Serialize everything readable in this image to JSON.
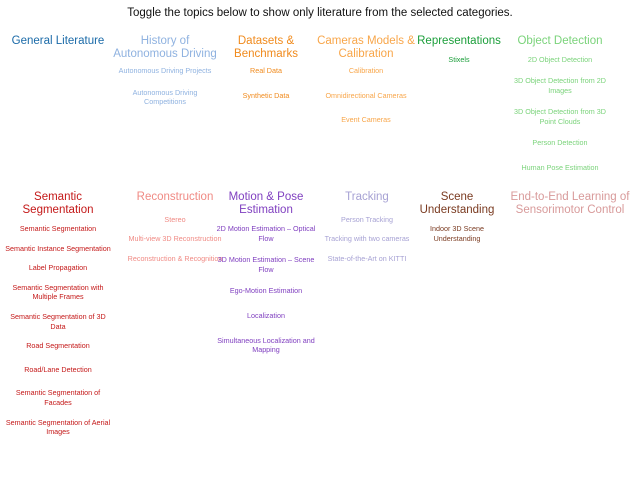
{
  "instruction": "Toggle the topics below to show only literature from the selected categories.",
  "colors": {
    "general_literature": "#1a6aa8",
    "history": "#8fb2e0",
    "datasets": "#f08a1c",
    "cameras": "#f8a64a",
    "representations": "#1b9e3a",
    "object_detection": "#7ad37a",
    "semantic_segmentation": "#c41818",
    "reconstruction": "#f08a84",
    "motion_pose": "#8040c0",
    "tracking": "#a7a2d4",
    "scene_understanding": "#7a3a20",
    "end_to_end": "#d89a9a"
  },
  "categories": [
    {
      "title": "General Literature",
      "items": []
    },
    {
      "title": "History of Autonomous Driving",
      "items": [
        "Autonomous Driving Projects",
        "Autonomous Driving Competitions"
      ]
    },
    {
      "title": "Datasets & Benchmarks",
      "items": [
        "Real Data",
        "Synthetic Data"
      ]
    },
    {
      "title": "Cameras Models & Calibration",
      "items": [
        "Calibration",
        "Omnidirectional Cameras",
        "Event Cameras"
      ]
    },
    {
      "title": "Representations",
      "items": [
        "Stixels"
      ]
    },
    {
      "title": "Object Detection",
      "items": [
        "2D Object Detection",
        "3D Object Detection from 2D Images",
        "3D Object Detection from 3D Point Clouds",
        "Person Detection",
        "Human Pose Estimation"
      ]
    },
    {
      "title": "Semantic Segmentation",
      "items": [
        "Semantic Segmentation",
        "Semantic Instance Segmentation",
        "Label Propagation",
        "Semantic Segmentation with Multiple Frames",
        "Semantic Segmentation of 3D Data",
        "Road Segmentation",
        "Road/Lane Detection",
        "Semantic Segmentation of Facades",
        "Semantic Segmentation of Aerial Images"
      ]
    },
    {
      "title": "Reconstruction",
      "items": [
        "Stereo",
        "Multi-view 3D Reconstruction",
        "Reconstruction & Recognition"
      ]
    },
    {
      "title": "Motion & Pose Estimation",
      "items": [
        "2D Motion Estimation – Optical Flow",
        "3D Motion Estimation – Scene Flow",
        "Ego-Motion Estimation",
        "Localization",
        "Simultaneous Localization and Mapping"
      ]
    },
    {
      "title": "Tracking",
      "items": [
        "Person Tracking",
        "Tracking with two cameras",
        "State-of-the-Art on KITTI"
      ]
    },
    {
      "title": "Scene Understanding",
      "items": [
        "Indoor 3D Scene Understanding"
      ]
    },
    {
      "title": "End-to-End Learning of Sensorimotor Control",
      "items": []
    }
  ]
}
